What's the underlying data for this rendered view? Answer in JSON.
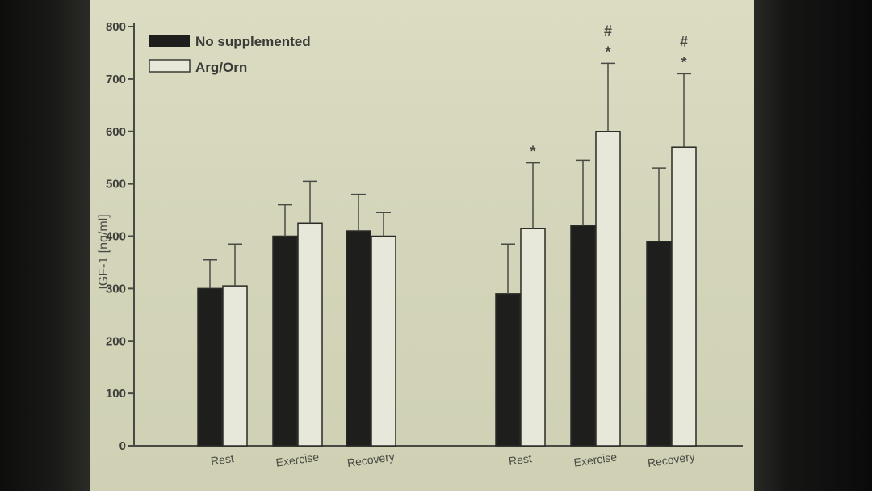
{
  "chart_data": {
    "type": "bar",
    "title": "",
    "xlabel": "",
    "ylabel": "IGF-1 [ng/ml]",
    "ylim": [
      0,
      800
    ],
    "yticks": [
      "0",
      "100",
      "200",
      "300",
      "400",
      "500",
      "600",
      "700",
      "800"
    ],
    "legend_position": "top-left",
    "grid": false,
    "categories": [
      "Rest",
      "Exercise",
      "Recovery",
      "Rest",
      "Exercise",
      "Recovery"
    ],
    "series": [
      {
        "name": "No supplemented",
        "color": "#1e1e1c",
        "values": [
          300,
          400,
          410,
          290,
          420,
          390
        ],
        "errors": [
          55,
          60,
          70,
          95,
          125,
          140
        ],
        "markers": [
          "",
          "",
          "",
          "",
          "",
          ""
        ]
      },
      {
        "name": "Arg/Orn",
        "color": "#e8e8da",
        "values": [
          305,
          425,
          400,
          415,
          600,
          570
        ],
        "errors": [
          80,
          80,
          45,
          125,
          130,
          140
        ],
        "markers": [
          "",
          "",
          "",
          "*",
          "# *",
          "# *"
        ]
      }
    ]
  }
}
